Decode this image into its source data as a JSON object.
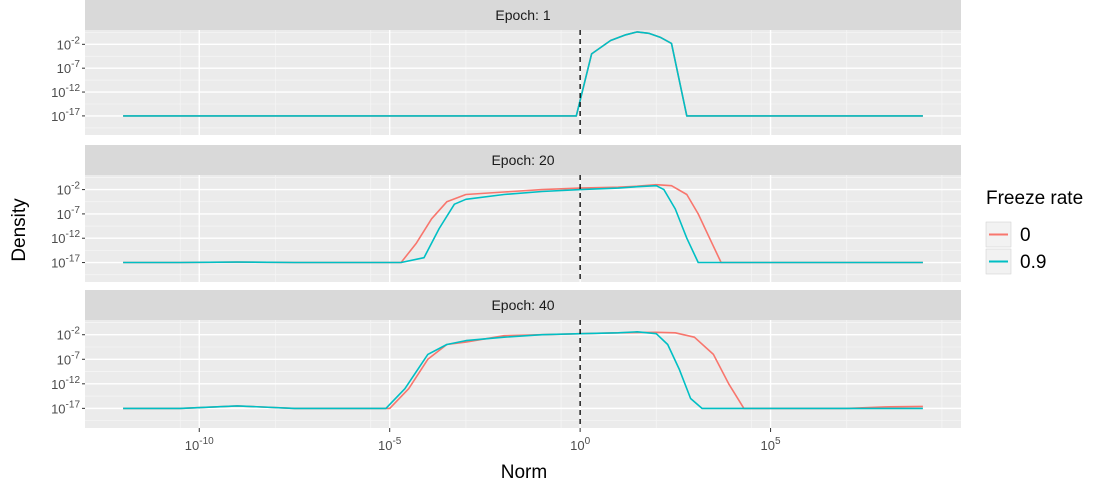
{
  "chart_data": {
    "type": "line",
    "xlabel": "Norm",
    "ylabel": "Density",
    "x_scale": "log10",
    "y_scale": "log10",
    "xlim_log10": [
      -13,
      10
    ],
    "ylim_log10": [
      -21,
      1
    ],
    "x_ticks": [
      {
        "base": "10",
        "exp": "-10",
        "log10": -10
      },
      {
        "base": "10",
        "exp": "-5",
        "log10": -5
      },
      {
        "base": "10",
        "exp": "0",
        "log10": 0
      },
      {
        "base": "10",
        "exp": "5",
        "log10": 5
      }
    ],
    "y_ticks": [
      {
        "base": "10",
        "exp": "-2",
        "log10": -2
      },
      {
        "base": "10",
        "exp": "-7",
        "log10": -7
      },
      {
        "base": "10",
        "exp": "-12",
        "log10": -12
      },
      {
        "base": "10",
        "exp": "-17",
        "log10": -17
      }
    ],
    "reference_line": {
      "x": 1,
      "style": "dashed"
    },
    "grid": true,
    "legend": {
      "title": "Freeze rate",
      "position": "right",
      "entries": [
        {
          "label": "0",
          "color": "#F8766D"
        },
        {
          "label": "0.9",
          "color": "#00BFC4"
        }
      ]
    },
    "panels": [
      {
        "strip": "Epoch: 1",
        "series": [
          {
            "name": "0",
            "color": "#F8766D",
            "x_log10": [
              -12,
              -11.6,
              -10.8,
              -10.2,
              -9,
              -8,
              -6,
              -4,
              -2,
              -0.5,
              -0.1,
              0.3,
              0.8,
              1.2,
              1.5,
              1.8,
              2.1,
              2.4,
              2.8,
              3.5,
              5,
              7,
              8,
              9
            ],
            "y_log10": [
              -17,
              -17,
              -17,
              -17,
              -17,
              -17,
              -17,
              -17,
              -17,
              -17,
              -17,
              -4,
              -1.2,
              0,
              0.6,
              0.3,
              -0.5,
              -1.8,
              -17,
              -17,
              -17,
              -17,
              -17,
              -17
            ]
          },
          {
            "name": "0.9",
            "color": "#00BFC4",
            "x_log10": [
              -12,
              -11.6,
              -10.8,
              -10.2,
              -9,
              -8,
              -6,
              -4,
              -2,
              -0.5,
              -0.1,
              0.3,
              0.8,
              1.2,
              1.5,
              1.8,
              2.1,
              2.4,
              2.8,
              3.5,
              5,
              7,
              8,
              9
            ],
            "y_log10": [
              -17,
              -17,
              -17,
              -17,
              -17,
              -17,
              -17,
              -17,
              -17,
              -17,
              -17,
              -4,
              -1.2,
              0,
              0.6,
              0.3,
              -0.5,
              -1.8,
              -17,
              -17,
              -17,
              -17,
              -17,
              -17
            ]
          }
        ]
      },
      {
        "strip": "Epoch: 20",
        "series": [
          {
            "name": "0",
            "color": "#F8766D",
            "x_log10": [
              -12,
              -10.5,
              -9,
              -7.5,
              -6.5,
              -5.5,
              -4.7,
              -4.3,
              -3.9,
              -3.5,
              -3,
              -2,
              -1,
              0,
              1,
              1.5,
              2,
              2.4,
              2.8,
              3.1,
              3.4,
              3.7,
              4,
              4.5,
              5.5,
              7,
              8,
              9
            ],
            "y_log10": [
              -17,
              -17,
              -16.9,
              -17,
              -17,
              -17,
              -17,
              -13,
              -8,
              -4.5,
              -3,
              -2.5,
              -2,
              -1.7,
              -1.5,
              -1.3,
              -1,
              -1.2,
              -3,
              -7,
              -12,
              -17,
              -17,
              -17,
              -17,
              -17,
              -17,
              -17
            ]
          },
          {
            "name": "0.9",
            "color": "#00BFC4",
            "x_log10": [
              -12,
              -10.5,
              -9,
              -7.5,
              -6.5,
              -5.5,
              -4.7,
              -4.1,
              -3.7,
              -3.3,
              -3,
              -2,
              -1,
              0,
              1,
              1.5,
              2,
              2.2,
              2.5,
              2.8,
              3.1,
              3.4,
              4,
              5.5,
              7,
              8,
              9
            ],
            "y_log10": [
              -17,
              -17,
              -16.9,
              -17,
              -17,
              -17,
              -17,
              -16,
              -10,
              -5,
              -4,
              -3,
              -2.4,
              -2,
              -1.7,
              -1.4,
              -1.2,
              -2,
              -6,
              -12,
              -17,
              -17,
              -17,
              -17,
              -17,
              -17,
              -17
            ]
          }
        ]
      },
      {
        "strip": "Epoch: 40",
        "series": [
          {
            "name": "0",
            "color": "#F8766D",
            "x_log10": [
              -12,
              -10.5,
              -9,
              -7.5,
              -6,
              -5.5,
              -5,
              -4.5,
              -4,
              -3.5,
              -3,
              -2,
              -1,
              0,
              1,
              2,
              2.5,
              3,
              3.5,
              3.9,
              4.3,
              4.7,
              5.5,
              7,
              8,
              9
            ],
            "y_log10": [
              -17,
              -17,
              -16.5,
              -17,
              -17,
              -17,
              -17,
              -13,
              -7,
              -4,
              -3.5,
              -2.2,
              -2,
              -1.8,
              -1.6,
              -1.5,
              -1.6,
              -2.5,
              -6,
              -12,
              -17,
              -17,
              -17,
              -17,
              -16.7,
              -16.6
            ]
          },
          {
            "name": "0.9",
            "color": "#00BFC4",
            "x_log10": [
              -12,
              -10.5,
              -9,
              -7.5,
              -6,
              -5.5,
              -5.1,
              -4.6,
              -4,
              -3.5,
              -3,
              -2,
              -1,
              0,
              1,
              1.5,
              2,
              2.3,
              2.6,
              2.9,
              3.2,
              3.5,
              4,
              5.5,
              7,
              8,
              9
            ],
            "y_log10": [
              -17,
              -17,
              -16.5,
              -17,
              -17,
              -17,
              -17,
              -13,
              -6,
              -4,
              -3.2,
              -2.5,
              -2,
              -1.8,
              -1.6,
              -1.4,
              -1.8,
              -4,
              -9,
              -15,
              -17,
              -17,
              -17,
              -17,
              -17,
              -17,
              -17
            ]
          }
        ]
      }
    ]
  }
}
